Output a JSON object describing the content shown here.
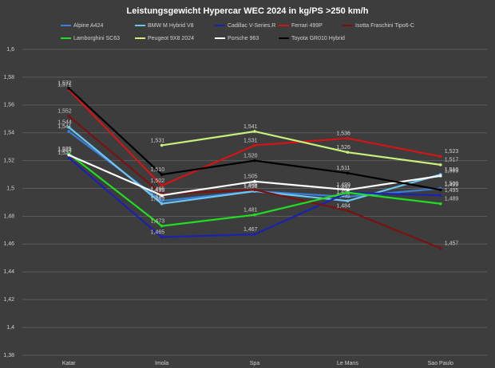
{
  "chart_data": {
    "type": "line",
    "title": "Leistungsgewicht  Hypercar WEC 2024 in kg/PS >250 km/h",
    "categories": [
      "Katar",
      "Imola",
      "Spa",
      "Le Mans",
      "Sao Paulo"
    ],
    "ylim": [
      1.38,
      1.6
    ],
    "yticks": [
      {
        "value": 1.38,
        "label": "1,38"
      },
      {
        "value": 1.4,
        "label": "1,4"
      },
      {
        "value": 1.42,
        "label": "1,42"
      },
      {
        "value": 1.44,
        "label": "1,44"
      },
      {
        "value": 1.46,
        "label": "1,46"
      },
      {
        "value": 1.48,
        "label": "1,48"
      },
      {
        "value": 1.5,
        "label": "1,5"
      },
      {
        "value": 1.52,
        "label": "1,52"
      },
      {
        "value": 1.54,
        "label": "1,54"
      },
      {
        "value": 1.56,
        "label": "1,56"
      },
      {
        "value": 1.58,
        "label": "1,58"
      },
      {
        "value": 1.6,
        "label": "1,6"
      }
    ],
    "grid": true,
    "series": [
      {
        "name": "Alpine A424",
        "color": "#3a7fd5",
        "values": [
          1.541,
          1.491,
          1.498,
          1.494,
          1.5
        ],
        "value_labels": [
          "1,541",
          "1,491",
          "1,498",
          "1,494",
          "1,500"
        ]
      },
      {
        "name": "BMW M Hybrid V8",
        "color": "#6ec6f0",
        "values": [
          1.544,
          1.489,
          1.498,
          1.491,
          1.51
        ],
        "value_labels": [
          "1,544",
          "1,489",
          "1,498",
          "1,491",
          "1,510"
        ]
      },
      {
        "name": "Cadillac V-Series.R",
        "color": "#1c22b0",
        "values": [
          1.522,
          1.465,
          1.467,
          1.497,
          1.495
        ],
        "value_labels": [
          "1,522",
          "1,465",
          "1,467",
          "1,497",
          "1,495"
        ]
      },
      {
        "name": "Ferrari 499P",
        "color": "#d41414",
        "values": [
          1.571,
          1.502,
          1.531,
          1.536,
          1.523
        ],
        "value_labels": [
          "1,571",
          "1,502",
          "1,531",
          "1,536",
          "1,523"
        ]
      },
      {
        "name": "Isotta Fraschini Tipo6-C",
        "color": "#7a1212",
        "values": [
          1.552,
          1.496,
          1.499,
          1.484,
          1.457
        ],
        "value_labels": [
          "1,552",
          "1,496",
          "1,499",
          "1,484",
          "1,457"
        ]
      },
      {
        "name": "Lamborghini SC63",
        "color": "#22dd22",
        "values": [
          1.525,
          1.473,
          1.481,
          1.497,
          1.489
        ],
        "value_labels": [
          "1,525",
          "1,473",
          "1,481",
          "1,497",
          "1,489"
        ]
      },
      {
        "name": "Peugeot 9X8 2024",
        "color": "#c8f07a",
        "values": [
          null,
          1.531,
          1.541,
          1.526,
          1.517
        ],
        "value_labels": [
          null,
          "1,531",
          "1,541",
          "1,526",
          "1,517"
        ]
      },
      {
        "name": "Porsche 963",
        "color": "#ffffff",
        "values": [
          1.524,
          1.495,
          1.505,
          1.499,
          1.509
        ],
        "value_labels": [
          "1,524",
          "1,495",
          "1,505",
          "1,499",
          "1,509"
        ]
      },
      {
        "name": "Toyota GR010 Hybrid",
        "color": "#000000",
        "values": [
          1.572,
          1.51,
          1.52,
          1.511,
          1.499
        ],
        "value_labels": [
          "1,572",
          "1,510",
          "1,520",
          "1,511",
          "1,499"
        ]
      }
    ]
  }
}
